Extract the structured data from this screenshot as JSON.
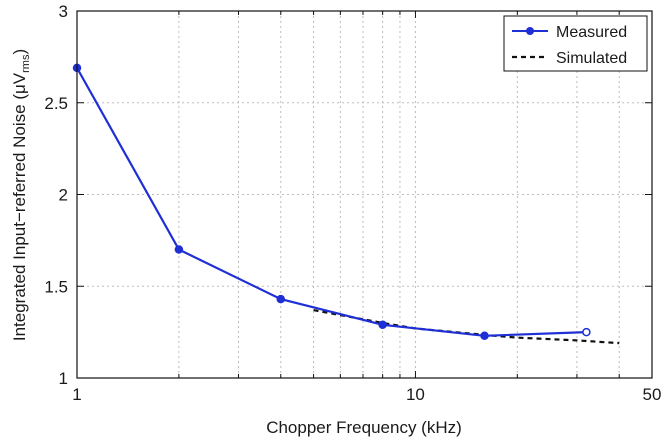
{
  "chart_data": {
    "type": "line",
    "xlabel": "Chopper Frequency (kHz)",
    "ylabel": "Integrated Input−referred Noise (μV",
    "ylabel_sub": "rms",
    "ylabel_close": ")",
    "xscale": "log",
    "xlim": [
      1,
      50
    ],
    "ylim": [
      1,
      3
    ],
    "x_ticks": [
      1,
      10,
      50
    ],
    "x_tick_labels": [
      "1",
      "10",
      "50"
    ],
    "y_ticks": [
      1,
      1.5,
      2,
      2.5,
      3
    ],
    "y_tick_labels": [
      "1",
      "1.5",
      "2",
      "2.5",
      "3"
    ],
    "grid": true,
    "legend_position": "top-right",
    "series": [
      {
        "name": "Measured",
        "style": "solid-marker",
        "color": "#1f2fd6",
        "x": [
          1,
          2,
          4,
          8,
          16,
          32
        ],
        "y": [
          2.69,
          1.7,
          1.43,
          1.29,
          1.23,
          1.25
        ]
      },
      {
        "name": "Simulated",
        "style": "dashed",
        "color": "#111111",
        "x": [
          5,
          8,
          10,
          16,
          20,
          30,
          40
        ],
        "y": [
          1.37,
          1.3,
          1.27,
          1.235,
          1.22,
          1.205,
          1.19
        ]
      }
    ]
  }
}
